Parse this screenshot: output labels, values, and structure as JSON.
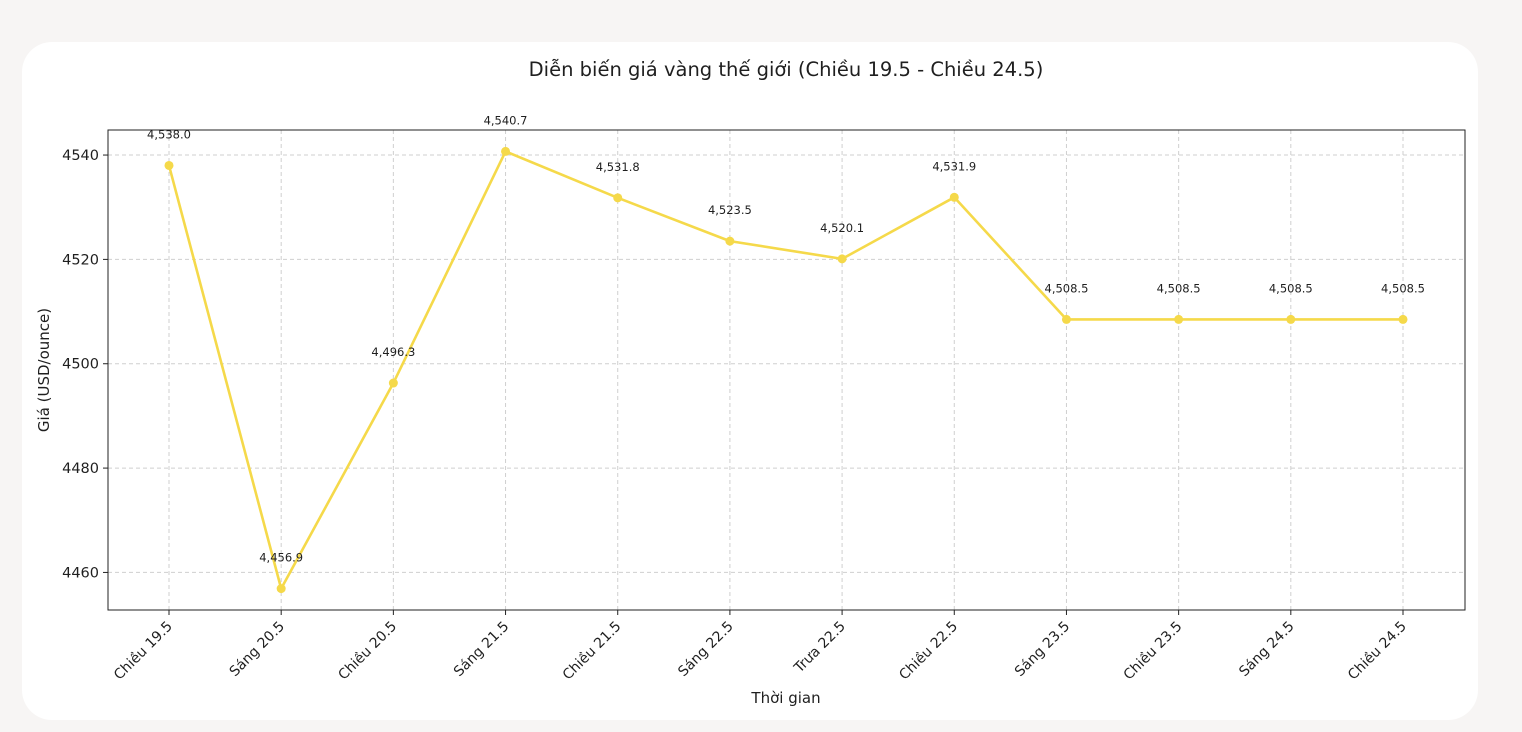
{
  "chart_data": {
    "type": "line",
    "title": "Diễn biến giá vàng thế giới (Chiều 19.5 - Chiều 24.5)",
    "xlabel": "Thời gian",
    "ylabel": "Giá (USD/ounce)",
    "categories": [
      "Chiều 19.5",
      "Sáng 20.5",
      "Chiều 20.5",
      "Sáng 21.5",
      "Chiều 21.5",
      "Sáng 22.5",
      "Trưa 22.5",
      "Chiều 22.5",
      "Sáng 23.5",
      "Chiều 23.5",
      "Sáng 24.5",
      "Chiều 24.5"
    ],
    "series": [
      {
        "values": [
          4538.0,
          4456.9,
          4496.3,
          4540.7,
          4531.8,
          4523.5,
          4520.1,
          4531.9,
          4508.5,
          4508.5,
          4508.5,
          4508.5
        ],
        "labels": [
          "4,538.0",
          "4,456.9",
          "4,496.3",
          "4,540.7",
          "4,531.8",
          "4,523.5",
          "4,520.1",
          "4,531.9",
          "4,508.5",
          "4,508.5",
          "4,508.5",
          "4,508.5"
        ],
        "color": "#f5d94a"
      }
    ],
    "yticks": [
      "4460",
      "4480",
      "4500",
      "4520",
      "4540"
    ],
    "ytick_values": [
      4460,
      4480,
      4500,
      4520,
      4540
    ],
    "ylim": [
      4452.8,
      4544.8
    ],
    "grid": true,
    "legend": "none"
  }
}
